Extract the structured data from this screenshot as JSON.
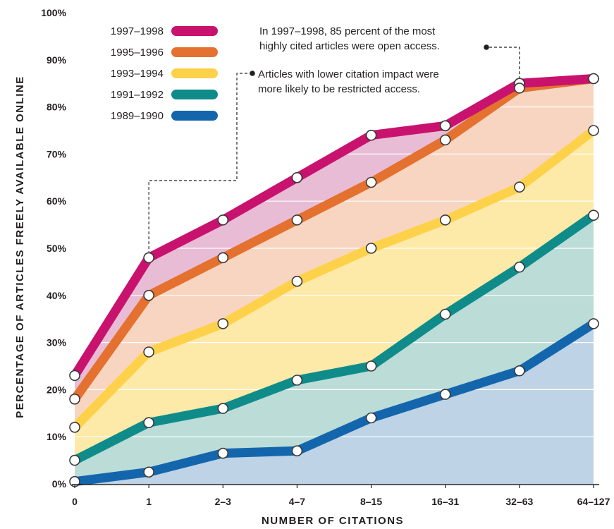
{
  "chart_data": {
    "type": "area",
    "categories": [
      "0",
      "1",
      "2–3",
      "4–7",
      "8–15",
      "16–31",
      "32–63",
      "64–127"
    ],
    "xlabel": "NUMBER OF CITATIONS",
    "ylabel": "PERCENTAGE OF ARTICLES FREELY AVAILABLE ONLINE",
    "ylim": [
      0,
      100
    ],
    "yticks": [
      "0%",
      "10%",
      "20%",
      "30%",
      "40%",
      "50%",
      "60%",
      "70%",
      "80%",
      "90%",
      "100%"
    ],
    "grid": true,
    "legend_position": "top-left",
    "series": [
      {
        "name": "1997–1998",
        "color": "#c8126e",
        "fill": "#e8bcd5",
        "values": [
          23,
          48,
          56,
          65,
          74,
          76,
          85,
          86
        ]
      },
      {
        "name": "1995–1996",
        "color": "#e4712f",
        "fill": "#f8d5c0",
        "values": [
          18,
          40,
          48,
          56,
          64,
          73,
          84,
          86
        ]
      },
      {
        "name": "1993–1994",
        "color": "#fdd24a",
        "fill": "#fde9a8",
        "values": [
          12,
          28,
          34,
          43,
          50,
          56,
          63,
          75
        ]
      },
      {
        "name": "1991–1992",
        "color": "#0f8c8a",
        "fill": "#bcdcd8",
        "values": [
          5,
          13,
          16,
          22,
          25,
          36,
          46,
          57
        ]
      },
      {
        "name": "1989–1990",
        "color": "#1466ac",
        "fill": "#bed3e6",
        "values": [
          0.5,
          2.5,
          6.5,
          7,
          14,
          19,
          24,
          34
        ]
      }
    ],
    "annotations": [
      {
        "lines": [
          "In 1997–1998, 85 percent of the most",
          "highly cited articles were open access."
        ],
        "category": "32–63",
        "series": "1997–1998"
      },
      {
        "lines": [
          "Articles with lower citation impact were",
          "more likely to be restricted access."
        ],
        "category": "1",
        "series": "1997–1998"
      }
    ]
  }
}
